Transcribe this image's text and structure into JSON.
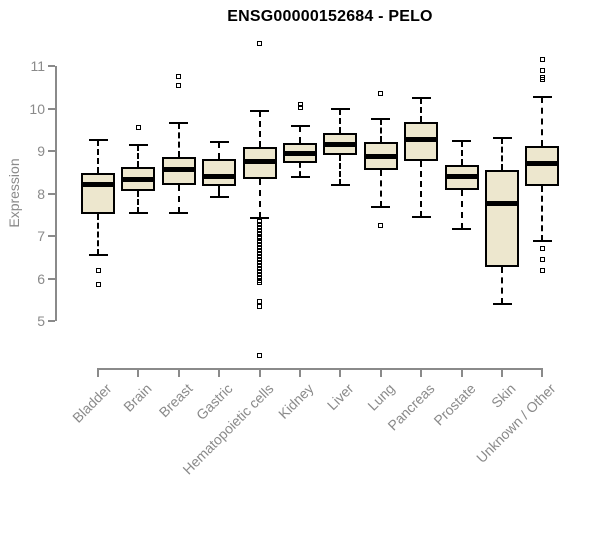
{
  "title": "ENSG00000152684 - PELO",
  "colors": {
    "box_fill": "#EDE7CE",
    "line": "#000000",
    "axis": "#8A8A8A",
    "label": "#8A8A8A",
    "title": "#000000"
  },
  "chart_data": {
    "type": "boxplot",
    "title": "ENSG00000152684 - PELO",
    "xlabel": "",
    "ylabel": "Expression",
    "ylim": [
      5,
      11
    ],
    "yticks": [
      5,
      6,
      7,
      8,
      9,
      10,
      11
    ],
    "grid": false,
    "legend": "none",
    "categories": [
      "Bladder",
      "Brain",
      "Breast",
      "Gastric",
      "Hematopoietic cells",
      "Kidney",
      "Liver",
      "Lung",
      "Pancreas",
      "Prostate",
      "Skin",
      "Unknown / Other"
    ],
    "series": [
      {
        "name": "Bladder",
        "whisker_low": 6.55,
        "q1": 7.52,
        "median": 8.22,
        "q3": 8.48,
        "whisker_high": 9.25,
        "outliers": [
          6.2,
          5.85
        ]
      },
      {
        "name": "Brain",
        "whisker_low": 7.55,
        "q1": 8.06,
        "median": 8.32,
        "q3": 8.63,
        "whisker_high": 9.15,
        "outliers": [
          9.55
        ]
      },
      {
        "name": "Breast",
        "whisker_low": 7.55,
        "q1": 8.19,
        "median": 8.57,
        "q3": 8.86,
        "whisker_high": 9.67,
        "outliers": [
          10.75,
          10.55
        ]
      },
      {
        "name": "Gastric",
        "whisker_low": 7.92,
        "q1": 8.18,
        "median": 8.39,
        "q3": 8.82,
        "whisker_high": 9.21,
        "outliers": []
      },
      {
        "name": "Hematopoietic cells",
        "whisker_low": 7.43,
        "q1": 8.33,
        "median": 8.76,
        "q3": 9.1,
        "whisker_high": 9.93,
        "outliers": [
          11.53,
          7.35,
          7.28,
          7.21,
          7.14,
          7.07,
          7.0,
          6.93,
          6.86,
          6.79,
          6.72,
          6.65,
          6.58,
          6.51,
          6.44,
          6.37,
          6.3,
          6.23,
          6.16,
          6.09,
          6.02,
          5.95,
          5.9,
          5.45,
          5.35,
          4.2
        ]
      },
      {
        "name": "Kidney",
        "whisker_low": 8.4,
        "q1": 8.72,
        "median": 8.95,
        "q3": 9.19,
        "whisker_high": 9.59,
        "outliers": [
          10.1,
          10.02
        ]
      },
      {
        "name": "Liver",
        "whisker_low": 8.19,
        "q1": 8.9,
        "median": 9.16,
        "q3": 9.42,
        "whisker_high": 10.0,
        "outliers": []
      },
      {
        "name": "Lung",
        "whisker_low": 7.68,
        "q1": 8.55,
        "median": 8.86,
        "q3": 9.21,
        "whisker_high": 9.76,
        "outliers": [
          10.35,
          7.25
        ]
      },
      {
        "name": "Pancreas",
        "whisker_low": 7.45,
        "q1": 8.76,
        "median": 9.27,
        "q3": 9.68,
        "whisker_high": 10.25,
        "outliers": []
      },
      {
        "name": "Prostate",
        "whisker_low": 7.17,
        "q1": 8.08,
        "median": 8.4,
        "q3": 8.66,
        "whisker_high": 9.23,
        "outliers": []
      },
      {
        "name": "Skin",
        "whisker_low": 5.41,
        "q1": 6.28,
        "median": 7.77,
        "q3": 8.56,
        "whisker_high": 9.31,
        "outliers": []
      },
      {
        "name": "Unknown / Other",
        "whisker_low": 6.88,
        "q1": 8.17,
        "median": 8.7,
        "q3": 9.11,
        "whisker_high": 10.27,
        "outliers": [
          11.15,
          10.9,
          10.72,
          10.68,
          6.7,
          6.45,
          6.2
        ]
      }
    ]
  }
}
